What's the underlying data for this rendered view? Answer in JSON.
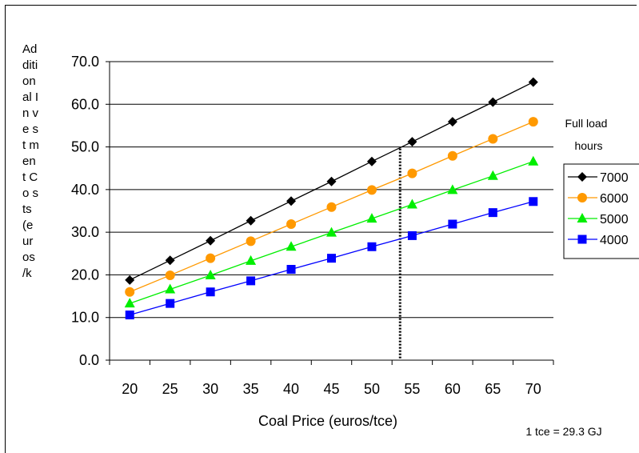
{
  "chart_data": {
    "type": "line",
    "title": "",
    "xlabel": "Coal Price (euros/tce)",
    "ylabel": "Additional Investment Costs (euros/kW)",
    "ylabel_visible": "Ad diti on al In ve st m en t Co sts (e ur os /k",
    "x": [
      20,
      25,
      30,
      35,
      40,
      45,
      50,
      55,
      60,
      65,
      70
    ],
    "xlim": [
      17.5,
      72.5
    ],
    "ylim": [
      0,
      70
    ],
    "yticks": [
      "0.0",
      "10.0",
      "20.0",
      "30.0",
      "40.0",
      "50.0",
      "60.0",
      "70.0"
    ],
    "xticks": [
      "20",
      "25",
      "30",
      "35",
      "40",
      "45",
      "50",
      "55",
      "60",
      "65",
      "70"
    ],
    "grid": "horizontal",
    "legend_title_line1": "Full load",
    "legend_title_line2": "hours",
    "legend_position": "right",
    "note": "1 tce = 29.3 GJ",
    "marker_line_x": 53.5,
    "series": [
      {
        "name": "7000",
        "color": "#000000",
        "marker": "diamond",
        "values": [
          18.8,
          23.4,
          28.0,
          32.7,
          37.3,
          41.9,
          46.6,
          51.2,
          55.9,
          60.5,
          65.2
        ]
      },
      {
        "name": "6000",
        "color": "#FF9900",
        "marker": "circle",
        "values": [
          16.0,
          19.9,
          23.9,
          27.9,
          31.9,
          35.9,
          39.9,
          43.8,
          47.9,
          51.9,
          55.9
        ]
      },
      {
        "name": "5000",
        "color": "#00EE00",
        "marker": "triangle",
        "values": [
          13.3,
          16.6,
          19.9,
          23.3,
          26.6,
          29.9,
          33.2,
          36.5,
          39.9,
          43.2,
          46.6
        ]
      },
      {
        "name": "4000",
        "color": "#0000FF",
        "marker": "square",
        "values": [
          10.6,
          13.3,
          16.0,
          18.6,
          21.3,
          23.9,
          26.6,
          29.2,
          31.9,
          34.6,
          37.2
        ]
      }
    ]
  }
}
